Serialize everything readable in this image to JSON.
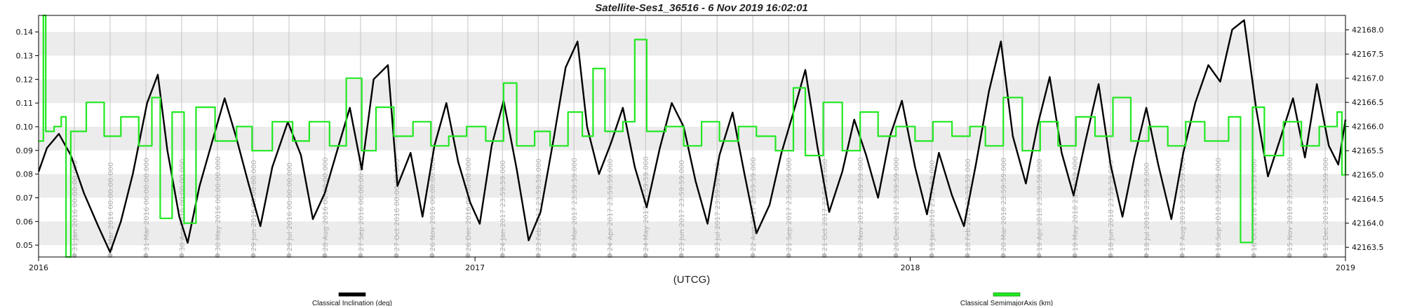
{
  "chart_data": {
    "type": "line",
    "title": "Satellite-Ses1_36516 -  6 Nov 2019 16:02:01",
    "xlabel": "(UTCG)",
    "x_ticks": [
      {
        "label": "2016",
        "date": "2016-01-01"
      },
      {
        "label": "2017",
        "date": "2017-01-01"
      },
      {
        "label": "2018",
        "date": "2018-01-01"
      },
      {
        "label": "2019",
        "date": "2019-01-01"
      }
    ],
    "xlim": [
      "2016-01-01",
      "2019-01-01"
    ],
    "y_left": {
      "ylim": [
        0.045,
        0.147
      ],
      "ticks": [
        "0.05",
        "0.06",
        "0.07",
        "0.08",
        "0.09",
        "0.10",
        "0.11",
        "0.12",
        "0.13",
        "0.14"
      ]
    },
    "y_right": {
      "ylim": [
        42163.3,
        42168.3
      ],
      "ticks": [
        "42163.5",
        "42164.0",
        "42164.5",
        "42165.0",
        "42165.5",
        "42166.0",
        "42166.5",
        "42167.0",
        "42167.5",
        "42168.0"
      ]
    },
    "grid": "horizontal bands",
    "legend_position": "bottom",
    "series": [
      {
        "name": "Classical Inclination (deg)",
        "axis": "left",
        "color": "#000000",
        "points": [
          [
            "2016-01-01",
            0.081
          ],
          [
            "2016-01-08",
            0.091
          ],
          [
            "2016-01-18",
            0.097
          ],
          [
            "2016-01-28",
            0.088
          ],
          [
            "2016-02-08",
            0.072
          ],
          [
            "2016-02-20",
            0.058
          ],
          [
            "2016-03-01",
            0.047
          ],
          [
            "2016-03-10",
            0.06
          ],
          [
            "2016-03-20",
            0.08
          ],
          [
            "2016-04-01",
            0.11
          ],
          [
            "2016-04-10",
            0.122
          ],
          [
            "2016-04-18",
            0.09
          ],
          [
            "2016-04-28",
            0.062
          ],
          [
            "2016-05-05",
            0.051
          ],
          [
            "2016-05-15",
            0.075
          ],
          [
            "2016-05-28",
            0.098
          ],
          [
            "2016-06-05",
            0.112
          ],
          [
            "2016-06-15",
            0.095
          ],
          [
            "2016-06-25",
            0.076
          ],
          [
            "2016-07-05",
            0.058
          ],
          [
            "2016-07-15",
            0.083
          ],
          [
            "2016-07-28",
            0.102
          ],
          [
            "2016-08-08",
            0.088
          ],
          [
            "2016-08-18",
            0.061
          ],
          [
            "2016-08-28",
            0.072
          ],
          [
            "2016-09-08",
            0.091
          ],
          [
            "2016-09-18",
            0.108
          ],
          [
            "2016-09-28",
            0.082
          ],
          [
            "2016-10-08",
            0.12
          ],
          [
            "2016-10-20",
            0.126
          ],
          [
            "2016-10-28",
            0.075
          ],
          [
            "2016-11-08",
            0.089
          ],
          [
            "2016-11-18",
            0.062
          ],
          [
            "2016-11-28",
            0.092
          ],
          [
            "2016-12-08",
            0.11
          ],
          [
            "2016-12-18",
            0.085
          ],
          [
            "2016-12-28",
            0.068
          ],
          [
            "2017-01-05",
            0.059
          ],
          [
            "2017-01-15",
            0.092
          ],
          [
            "2017-01-25",
            0.111
          ],
          [
            "2017-02-05",
            0.082
          ],
          [
            "2017-02-15",
            0.052
          ],
          [
            "2017-02-25",
            0.064
          ],
          [
            "2017-03-08",
            0.095
          ],
          [
            "2017-03-18",
            0.125
          ],
          [
            "2017-03-28",
            0.136
          ],
          [
            "2017-04-05",
            0.1
          ],
          [
            "2017-04-15",
            0.08
          ],
          [
            "2017-04-25",
            0.093
          ],
          [
            "2017-05-05",
            0.108
          ],
          [
            "2017-05-15",
            0.083
          ],
          [
            "2017-05-25",
            0.066
          ],
          [
            "2017-06-05",
            0.091
          ],
          [
            "2017-06-15",
            0.11
          ],
          [
            "2017-06-25",
            0.1
          ],
          [
            "2017-07-05",
            0.077
          ],
          [
            "2017-07-15",
            0.059
          ],
          [
            "2017-07-25",
            0.088
          ],
          [
            "2017-08-05",
            0.106
          ],
          [
            "2017-08-15",
            0.08
          ],
          [
            "2017-08-25",
            0.055
          ],
          [
            "2017-09-05",
            0.067
          ],
          [
            "2017-09-15",
            0.089
          ],
          [
            "2017-09-25",
            0.106
          ],
          [
            "2017-10-05",
            0.124
          ],
          [
            "2017-10-15",
            0.092
          ],
          [
            "2017-10-25",
            0.064
          ],
          [
            "2017-11-05",
            0.081
          ],
          [
            "2017-11-15",
            0.103
          ],
          [
            "2017-11-25",
            0.088
          ],
          [
            "2017-12-05",
            0.07
          ],
          [
            "2017-12-15",
            0.096
          ],
          [
            "2017-12-25",
            0.111
          ],
          [
            "2018-01-05",
            0.083
          ],
          [
            "2018-01-15",
            0.063
          ],
          [
            "2018-01-25",
            0.089
          ],
          [
            "2018-02-05",
            0.071
          ],
          [
            "2018-02-15",
            0.058
          ],
          [
            "2018-02-25",
            0.084
          ],
          [
            "2018-03-08",
            0.115
          ],
          [
            "2018-03-18",
            0.136
          ],
          [
            "2018-03-28",
            0.096
          ],
          [
            "2018-04-08",
            0.076
          ],
          [
            "2018-04-18",
            0.101
          ],
          [
            "2018-04-28",
            0.121
          ],
          [
            "2018-05-08",
            0.089
          ],
          [
            "2018-05-18",
            0.071
          ],
          [
            "2018-05-28",
            0.094
          ],
          [
            "2018-06-08",
            0.118
          ],
          [
            "2018-06-18",
            0.084
          ],
          [
            "2018-06-28",
            0.062
          ],
          [
            "2018-07-08",
            0.087
          ],
          [
            "2018-07-18",
            0.108
          ],
          [
            "2018-07-28",
            0.084
          ],
          [
            "2018-08-08",
            0.061
          ],
          [
            "2018-08-18",
            0.089
          ],
          [
            "2018-08-28",
            0.11
          ],
          [
            "2018-09-08",
            0.126
          ],
          [
            "2018-09-18",
            0.119
          ],
          [
            "2018-09-28",
            0.141
          ],
          [
            "2018-10-08",
            0.145
          ],
          [
            "2018-10-18",
            0.108
          ],
          [
            "2018-10-28",
            0.079
          ],
          [
            "2018-11-08",
            0.096
          ],
          [
            "2018-11-18",
            0.112
          ],
          [
            "2018-11-28",
            0.087
          ],
          [
            "2018-12-08",
            0.118
          ],
          [
            "2018-12-18",
            0.092
          ],
          [
            "2018-12-26",
            0.084
          ],
          [
            "2019-01-01",
            0.103
          ]
        ]
      },
      {
        "name": "Classical SemimajorAxis (km)",
        "axis": "right",
        "color": "#22e822",
        "points": [
          [
            "2016-01-01",
            42165.7
          ],
          [
            "2016-01-05",
            42168.3
          ],
          [
            "2016-01-07",
            42165.9
          ],
          [
            "2016-01-14",
            42166.0
          ],
          [
            "2016-01-20",
            42166.2
          ],
          [
            "2016-01-24",
            42163.3
          ],
          [
            "2016-01-28",
            42165.9
          ],
          [
            "2016-02-10",
            42166.5
          ],
          [
            "2016-02-25",
            42165.8
          ],
          [
            "2016-03-10",
            42166.2
          ],
          [
            "2016-03-25",
            42165.6
          ],
          [
            "2016-04-05",
            42166.6
          ],
          [
            "2016-04-12",
            42164.1
          ],
          [
            "2016-04-22",
            42166.3
          ],
          [
            "2016-05-02",
            42164.0
          ],
          [
            "2016-05-12",
            42166.4
          ],
          [
            "2016-05-28",
            42165.7
          ],
          [
            "2016-06-15",
            42166.0
          ],
          [
            "2016-06-28",
            42165.5
          ],
          [
            "2016-07-15",
            42166.1
          ],
          [
            "2016-08-01",
            42165.7
          ],
          [
            "2016-08-15",
            42166.1
          ],
          [
            "2016-09-01",
            42165.6
          ],
          [
            "2016-09-15",
            42167.0
          ],
          [
            "2016-09-28",
            42165.5
          ],
          [
            "2016-10-10",
            42166.4
          ],
          [
            "2016-10-25",
            42165.8
          ],
          [
            "2016-11-10",
            42166.1
          ],
          [
            "2016-11-25",
            42165.6
          ],
          [
            "2016-12-10",
            42165.8
          ],
          [
            "2016-12-25",
            42166.0
          ],
          [
            "2017-01-10",
            42165.7
          ],
          [
            "2017-01-25",
            42166.9
          ],
          [
            "2017-02-05",
            42165.6
          ],
          [
            "2017-02-20",
            42165.9
          ],
          [
            "2017-03-05",
            42165.6
          ],
          [
            "2017-03-20",
            42166.3
          ],
          [
            "2017-04-01",
            42165.8
          ],
          [
            "2017-04-10",
            42167.2
          ],
          [
            "2017-04-20",
            42165.9
          ],
          [
            "2017-05-05",
            42166.1
          ],
          [
            "2017-05-15",
            42167.8
          ],
          [
            "2017-05-25",
            42165.9
          ],
          [
            "2017-06-10",
            42166.0
          ],
          [
            "2017-06-25",
            42165.6
          ],
          [
            "2017-07-10",
            42166.1
          ],
          [
            "2017-07-25",
            42165.7
          ],
          [
            "2017-08-10",
            42166.0
          ],
          [
            "2017-08-25",
            42165.8
          ],
          [
            "2017-09-10",
            42165.5
          ],
          [
            "2017-09-25",
            42166.8
          ],
          [
            "2017-10-05",
            42165.4
          ],
          [
            "2017-10-20",
            42166.5
          ],
          [
            "2017-11-05",
            42165.5
          ],
          [
            "2017-11-20",
            42166.3
          ],
          [
            "2017-12-05",
            42165.8
          ],
          [
            "2017-12-20",
            42166.0
          ],
          [
            "2018-01-05",
            42165.7
          ],
          [
            "2018-01-20",
            42166.1
          ],
          [
            "2018-02-05",
            42165.8
          ],
          [
            "2018-02-20",
            42166.0
          ],
          [
            "2018-03-05",
            42165.6
          ],
          [
            "2018-03-20",
            42166.6
          ],
          [
            "2018-04-05",
            42165.5
          ],
          [
            "2018-04-20",
            42166.1
          ],
          [
            "2018-05-05",
            42165.6
          ],
          [
            "2018-05-20",
            42166.2
          ],
          [
            "2018-06-05",
            42165.8
          ],
          [
            "2018-06-20",
            42166.6
          ],
          [
            "2018-07-05",
            42165.7
          ],
          [
            "2018-07-20",
            42166.0
          ],
          [
            "2018-08-05",
            42165.6
          ],
          [
            "2018-08-20",
            42166.1
          ],
          [
            "2018-09-05",
            42165.7
          ],
          [
            "2018-09-25",
            42166.2
          ],
          [
            "2018-10-05",
            42163.6
          ],
          [
            "2018-10-15",
            42166.4
          ],
          [
            "2018-10-25",
            42165.4
          ],
          [
            "2018-11-10",
            42166.1
          ],
          [
            "2018-11-25",
            42165.6
          ],
          [
            "2018-12-10",
            42166.0
          ],
          [
            "2018-12-25",
            42166.3
          ],
          [
            "2018-12-29",
            42165.0
          ],
          [
            "2019-01-01",
            42166.1
          ]
        ]
      }
    ],
    "event_markers": [
      {
        "date": "2016-01-31",
        "label": "31 Jan 2016 00:00:00.000"
      },
      {
        "date": "2016-03-01",
        "label": "1 Mar 2016 00:00:00.000"
      },
      {
        "date": "2016-03-31",
        "label": "31 Mar 2016 00:00:00.000"
      },
      {
        "date": "2016-04-30",
        "label": "30 Apr 2016 00:00:00.000"
      },
      {
        "date": "2016-05-30",
        "label": "30 May 2016 00:00:00.000"
      },
      {
        "date": "2016-06-29",
        "label": "29 Jun 2016 00:00:00.000"
      },
      {
        "date": "2016-07-29",
        "label": "29 Jul 2016 00:00:00.000"
      },
      {
        "date": "2016-08-28",
        "label": "28 Aug 2016 00:00:00.000"
      },
      {
        "date": "2016-09-27",
        "label": "27 Sep 2016 00:00:00.000"
      },
      {
        "date": "2016-10-27",
        "label": "27 Oct 2016 00:00:00.000"
      },
      {
        "date": "2016-11-26",
        "label": "26 Nov 2016 00:00:00.000"
      },
      {
        "date": "2016-12-26",
        "label": "26 Dec 2016 00:00:00.000"
      },
      {
        "date": "2017-01-24",
        "label": "24 Jan 2017 23:59:59.000"
      },
      {
        "date": "2017-02-23",
        "label": "23 Feb 2017 23:59:59.000"
      },
      {
        "date": "2017-03-25",
        "label": "25 Mar 2017 23:59:59.000"
      },
      {
        "date": "2017-04-24",
        "label": "24 Apr 2017 23:59:59.000"
      },
      {
        "date": "2017-05-24",
        "label": "24 May 2017 23:59:59.000"
      },
      {
        "date": "2017-06-23",
        "label": "23 Jun 2017 23:59:59.000"
      },
      {
        "date": "2017-07-23",
        "label": "23 Jul 2017 23:59:59.000"
      },
      {
        "date": "2017-08-22",
        "label": "22 Aug 2017 23:59:59.000"
      },
      {
        "date": "2017-09-21",
        "label": "21 Sep 2017 23:59:59.000"
      },
      {
        "date": "2017-10-21",
        "label": "21 Oct 2017 23:59:59.000"
      },
      {
        "date": "2017-11-20",
        "label": "20 Nov 2017 23:59:59.000"
      },
      {
        "date": "2017-12-20",
        "label": "20 Dec 2017 23:59:59.000"
      },
      {
        "date": "2018-01-19",
        "label": "19 Jan 2018 23:59:59.000"
      },
      {
        "date": "2018-02-18",
        "label": "18 Feb 2018 23:59:59.000"
      },
      {
        "date": "2018-03-20",
        "label": "20 Mar 2018 23:59:59.000"
      },
      {
        "date": "2018-04-19",
        "label": "19 Apr 2018 23:59:59.000"
      },
      {
        "date": "2018-05-19",
        "label": "19 May 2018 23:59:59.000"
      },
      {
        "date": "2018-06-18",
        "label": "18 Jun 2018 23:59:59.000"
      },
      {
        "date": "2018-07-18",
        "label": "18 Jul 2018 23:59:59.000"
      },
      {
        "date": "2018-08-17",
        "label": "17 Aug 2018 23:59:59.000"
      },
      {
        "date": "2018-09-16",
        "label": "16 Sep 2018 23:59:59.000"
      },
      {
        "date": "2018-10-16",
        "label": "16 Oct 2018 23:59:59.000"
      },
      {
        "date": "2018-11-15",
        "label": "15 Nov 2018 23:59:59.000"
      },
      {
        "date": "2018-12-15",
        "label": "15 Dec 2018 23:59:59.000"
      }
    ],
    "colors": {
      "band": "#ececec",
      "event_line": "#c4c4c4",
      "event_dot": "#bdbdbd",
      "frame": "#000000"
    }
  }
}
